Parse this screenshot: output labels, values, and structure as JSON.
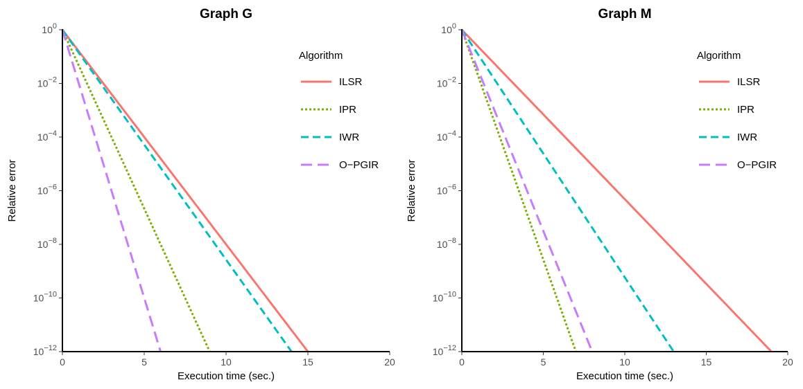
{
  "chart_data": [
    {
      "type": "line",
      "title": "Graph G",
      "xlabel": "Execution time (sec.)",
      "ylabel": "Relative error",
      "xlim": [
        0,
        20
      ],
      "ylim": [
        1e-12,
        1
      ],
      "yscale": "log",
      "xticks": [
        "0",
        "5",
        "10",
        "15",
        "20"
      ],
      "yticks": [
        {
          "base": "10",
          "exp": "0"
        },
        {
          "base": "10",
          "exp": "−2"
        },
        {
          "base": "10",
          "exp": "−4"
        },
        {
          "base": "10",
          "exp": "−6"
        },
        {
          "base": "10",
          "exp": "−8"
        },
        {
          "base": "10",
          "exp": "−10"
        },
        {
          "base": "10",
          "exp": "−12"
        }
      ],
      "grid": false,
      "legend": {
        "title": "Algorithm",
        "position": "top-right",
        "entries": [
          "ILSR",
          "IPR",
          "IWR",
          "O−PGIR"
        ]
      },
      "series": [
        {
          "name": "ILSR",
          "color": "#F8766D",
          "dash": "solid",
          "x": [
            0,
            15
          ],
          "y": [
            1,
            1e-12
          ]
        },
        {
          "name": "IPR",
          "color": "#7CAE00",
          "dash": "dotted",
          "x": [
            0,
            9
          ],
          "y": [
            1,
            1e-12
          ]
        },
        {
          "name": "IWR",
          "color": "#00BFC4",
          "dash": "dashed",
          "x": [
            0,
            14
          ],
          "y": [
            1,
            1e-12
          ]
        },
        {
          "name": "O−PGIR",
          "color": "#C77CFF",
          "dash": "longdash",
          "x": [
            0,
            6
          ],
          "y": [
            1,
            1e-12
          ]
        }
      ]
    },
    {
      "type": "line",
      "title": "Graph M",
      "xlabel": "Execution time (sec.)",
      "ylabel": "Relative error",
      "xlim": [
        0,
        20
      ],
      "ylim": [
        1e-12,
        1
      ],
      "yscale": "log",
      "xticks": [
        "0",
        "5",
        "10",
        "15",
        "20"
      ],
      "yticks": [
        {
          "base": "10",
          "exp": "0"
        },
        {
          "base": "10",
          "exp": "−2"
        },
        {
          "base": "10",
          "exp": "−4"
        },
        {
          "base": "10",
          "exp": "−6"
        },
        {
          "base": "10",
          "exp": "−8"
        },
        {
          "base": "10",
          "exp": "−10"
        },
        {
          "base": "10",
          "exp": "−12"
        }
      ],
      "grid": false,
      "legend": {
        "title": "Algorithm",
        "position": "top-right",
        "entries": [
          "ILSR",
          "IPR",
          "IWR",
          "O−PGIR"
        ]
      },
      "series": [
        {
          "name": "ILSR",
          "color": "#F8766D",
          "dash": "solid",
          "x": [
            0,
            19
          ],
          "y": [
            1,
            1e-12
          ]
        },
        {
          "name": "IPR",
          "color": "#7CAE00",
          "dash": "dotted",
          "x": [
            0,
            7
          ],
          "y": [
            1,
            1e-12
          ]
        },
        {
          "name": "IWR",
          "color": "#00BFC4",
          "dash": "dashed",
          "x": [
            0,
            13
          ],
          "y": [
            1,
            1e-12
          ]
        },
        {
          "name": "O−PGIR",
          "color": "#C77CFF",
          "dash": "longdash",
          "x": [
            0,
            8
          ],
          "y": [
            1,
            1e-12
          ]
        }
      ]
    }
  ]
}
